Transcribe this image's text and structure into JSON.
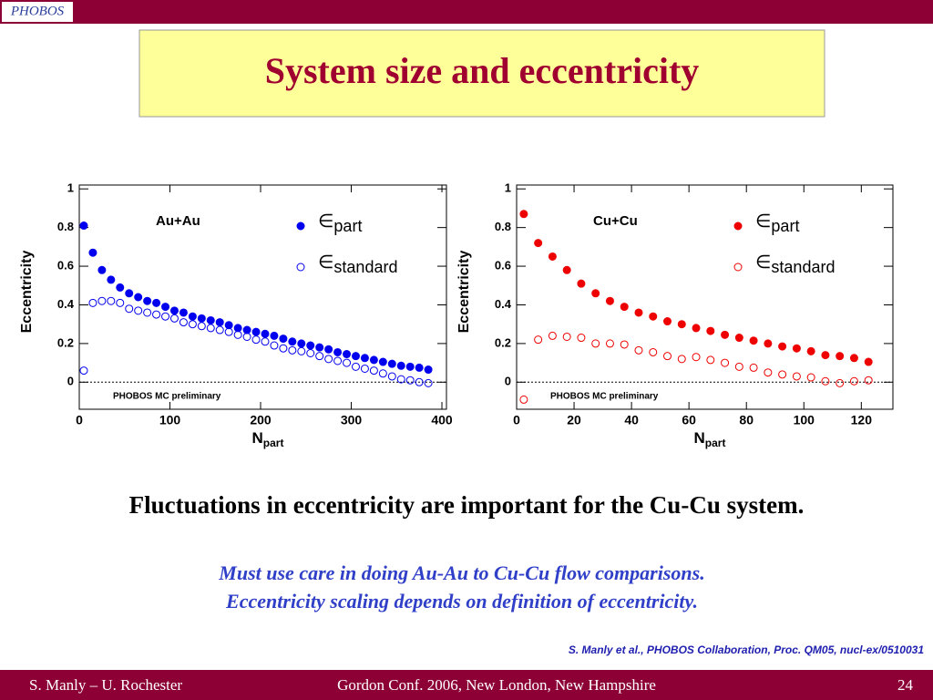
{
  "logo": "PHOBOS",
  "title": "System size and eccentricity",
  "statement": "Fluctuations in eccentricity are important for the Cu-Cu system.",
  "notes": [
    "Must use care in doing Au-Au to Cu-Cu flow comparisons.",
    "Eccentricity scaling depends on definition of eccentricity."
  ],
  "citation": "S. Manly et al., PHOBOS Collaboration, Proc. QM05, nucl-ex/0510031",
  "footer": {
    "left": "S. Manly – U. Rochester",
    "center": "Gordon Conf. 2006, New London, New Hampshire",
    "right": "24"
  },
  "chart_data": [
    {
      "type": "scatter",
      "annotation": "Au+Au",
      "note": "PHOBOS MC preliminary",
      "x_label": "Npart",
      "y_label": "Eccentricity",
      "xlim": [
        0,
        405
      ],
      "ylim": [
        -0.14,
        1.02
      ],
      "xticks": [
        0,
        100,
        200,
        300,
        400
      ],
      "yticks": [
        0,
        0.2,
        0.4,
        0.6,
        0.8,
        1
      ],
      "x": [
        5,
        15,
        25,
        35,
        45,
        55,
        65,
        75,
        85,
        95,
        105,
        115,
        125,
        135,
        145,
        155,
        165,
        175,
        185,
        195,
        205,
        215,
        225,
        235,
        245,
        255,
        265,
        275,
        285,
        295,
        305,
        315,
        325,
        335,
        345,
        355,
        365,
        375,
        385
      ],
      "series": [
        {
          "name": "∈part",
          "color": "#0000ee",
          "marker": "filled",
          "values": [
            0.81,
            0.67,
            0.58,
            0.53,
            0.49,
            0.46,
            0.44,
            0.42,
            0.41,
            0.39,
            0.37,
            0.36,
            0.34,
            0.33,
            0.32,
            0.31,
            0.295,
            0.28,
            0.27,
            0.26,
            0.25,
            0.24,
            0.225,
            0.21,
            0.2,
            0.19,
            0.18,
            0.17,
            0.155,
            0.145,
            0.135,
            0.125,
            0.115,
            0.105,
            0.095,
            0.085,
            0.08,
            0.075,
            0.065
          ]
        },
        {
          "name": "∈standard",
          "color": "#0000ee",
          "marker": "open",
          "values": [
            0.06,
            0.41,
            0.42,
            0.42,
            0.41,
            0.38,
            0.37,
            0.36,
            0.35,
            0.34,
            0.33,
            0.31,
            0.3,
            0.29,
            0.28,
            0.27,
            0.26,
            0.245,
            0.235,
            0.22,
            0.21,
            0.19,
            0.175,
            0.165,
            0.16,
            0.15,
            0.135,
            0.12,
            0.11,
            0.1,
            0.08,
            0.07,
            0.06,
            0.045,
            0.03,
            0.015,
            0.01,
            0.0,
            -0.005
          ]
        }
      ]
    },
    {
      "type": "scatter",
      "annotation": "Cu+Cu",
      "note": "PHOBOS MC preliminary",
      "x_label": "Npart",
      "y_label": "Eccentricity",
      "xlim": [
        0,
        131
      ],
      "ylim": [
        -0.14,
        1.02
      ],
      "xticks": [
        0,
        20,
        40,
        60,
        80,
        100,
        120
      ],
      "yticks": [
        0,
        0.2,
        0.4,
        0.6,
        0.8,
        1
      ],
      "x": [
        2.5,
        7.5,
        12.5,
        17.5,
        22.5,
        27.5,
        32.5,
        37.5,
        42.5,
        47.5,
        52.5,
        57.5,
        62.5,
        67.5,
        72.5,
        77.5,
        82.5,
        87.5,
        92.5,
        97.5,
        102.5,
        107.5,
        112.5,
        117.5,
        122.5
      ],
      "series": [
        {
          "name": "∈part",
          "color": "#ee0000",
          "marker": "filled",
          "values": [
            0.87,
            0.72,
            0.65,
            0.58,
            0.51,
            0.46,
            0.42,
            0.39,
            0.36,
            0.34,
            0.315,
            0.3,
            0.28,
            0.265,
            0.245,
            0.23,
            0.215,
            0.2,
            0.185,
            0.175,
            0.16,
            0.14,
            0.135,
            0.125,
            0.105
          ]
        },
        {
          "name": "∈standard",
          "color": "#ee0000",
          "marker": "open",
          "values": [
            -0.09,
            0.22,
            0.24,
            0.235,
            0.23,
            0.2,
            0.2,
            0.195,
            0.165,
            0.155,
            0.135,
            0.12,
            0.13,
            0.115,
            0.1,
            0.08,
            0.075,
            0.05,
            0.04,
            0.03,
            0.025,
            0.005,
            -0.005,
            0.005,
            0.01
          ]
        }
      ]
    }
  ]
}
